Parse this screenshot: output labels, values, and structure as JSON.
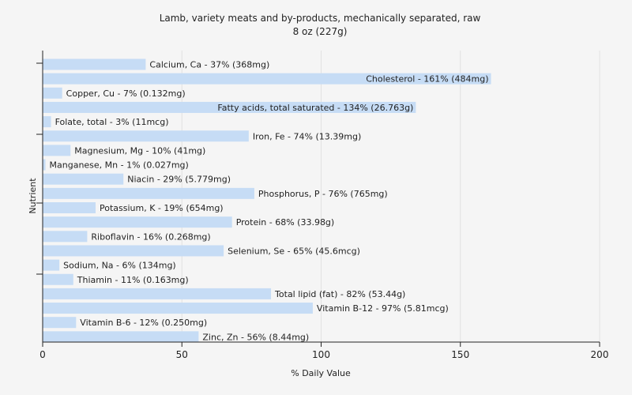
{
  "chart_data": {
    "type": "bar",
    "orientation": "horizontal",
    "title": "Lamb, variety meats and by-products, mechanically separated, raw",
    "subtitle": "8 oz (227g)",
    "xlabel": "% Daily Value",
    "ylabel": "Nutrient",
    "xlim": [
      0,
      200
    ],
    "xticks": [
      0,
      50,
      100,
      150,
      200
    ],
    "grid": true,
    "bar_color": "#c6dcf5",
    "categories": [
      "Calcium, Ca",
      "Cholesterol",
      "Copper, Cu",
      "Fatty acids, total saturated",
      "Folate, total",
      "Iron, Fe",
      "Magnesium, Mg",
      "Manganese, Mn",
      "Niacin",
      "Phosphorus, P",
      "Potassium, K",
      "Protein",
      "Riboflavin",
      "Selenium, Se",
      "Sodium, Na",
      "Thiamin",
      "Total lipid (fat)",
      "Vitamin B-12",
      "Vitamin B-6",
      "Zinc, Zn"
    ],
    "values": [
      37,
      161,
      7,
      134,
      3,
      74,
      10,
      1,
      29,
      76,
      19,
      68,
      16,
      65,
      6,
      11,
      82,
      97,
      12,
      56
    ],
    "labels": [
      "Calcium, Ca - 37% (368mg)",
      "Cholesterol - 161% (484mg)",
      "Copper, Cu - 7% (0.132mg)",
      "Fatty acids, total saturated - 134% (26.763g)",
      "Folate, total - 3% (11mcg)",
      "Iron, Fe - 74% (13.39mg)",
      "Magnesium, Mg - 10% (41mg)",
      "Manganese, Mn - 1% (0.027mg)",
      "Niacin - 29% (5.779mg)",
      "Phosphorus, P - 76% (765mg)",
      "Potassium, K - 19% (654mg)",
      "Protein - 68% (33.98g)",
      "Riboflavin - 16% (0.268mg)",
      "Selenium, Se - 65% (45.6mcg)",
      "Sodium, Na - 6% (134mg)",
      "Thiamin - 11% (0.163mg)",
      "Total lipid (fat) - 82% (53.44g)",
      "Vitamin B-12 - 97% (5.81mcg)",
      "Vitamin B-6 - 12% (0.250mg)",
      "Zinc, Zn - 56% (8.44mg)"
    ]
  }
}
